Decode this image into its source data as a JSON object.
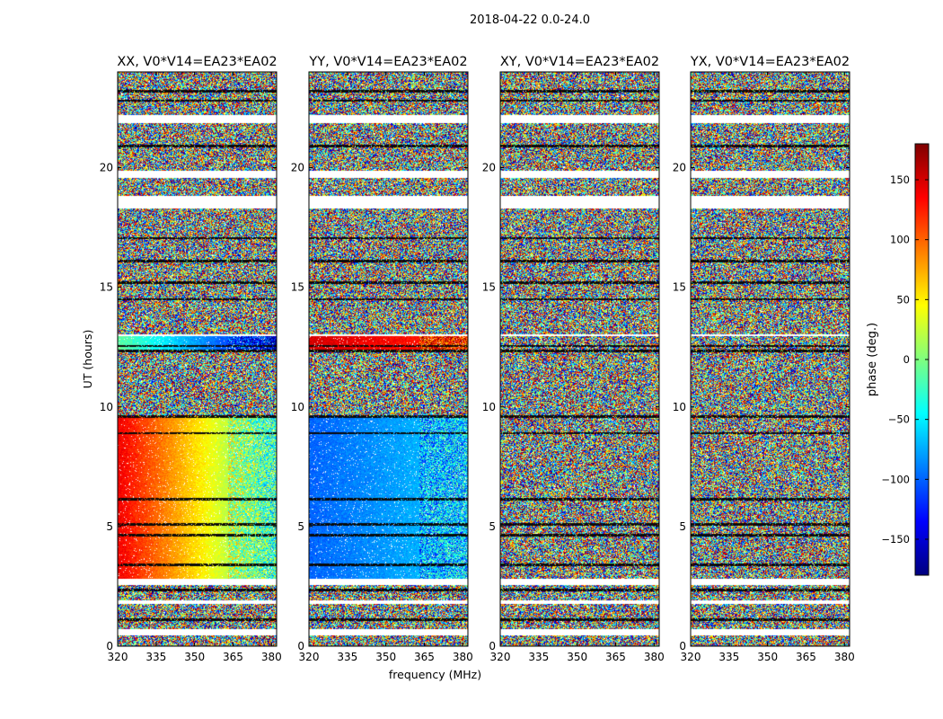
{
  "figure": {
    "suptitle": "2018-04-22 0.0-24.0"
  },
  "colorbar": {
    "label": "phase (deg.)",
    "ticks": [
      -150,
      -100,
      -50,
      0,
      50,
      100,
      150
    ],
    "tick_labels": [
      "−150",
      "−100",
      "−50",
      "0",
      "50",
      "100",
      "150"
    ],
    "range": [
      -180,
      180
    ],
    "colormap": "jet",
    "colors": [
      "#00007f",
      "#0000ff",
      "#007fff",
      "#00ffff",
      "#7fff7f",
      "#ffff00",
      "#ff7f00",
      "#ff0000",
      "#7f0000"
    ]
  },
  "chart_data": [
    {
      "type": "heatmap",
      "title": "XX, V0*V14=EA23*EA02",
      "xlabel": "",
      "ylabel": "UT (hours)",
      "xlim": [
        320,
        382
      ],
      "ylim": [
        0,
        24
      ],
      "xticks": [
        320,
        335,
        350,
        365,
        380
      ],
      "yticks": [
        0,
        5,
        10,
        15,
        20
      ],
      "coherent_phase_bands": [
        {
          "ut": [
            2.8,
            9.6
          ],
          "phase_at_320": 140,
          "phase_at_380": -30
        },
        {
          "ut": [
            12.4,
            13.0
          ],
          "phase_at_320": -10,
          "phase_at_380": -150
        }
      ]
    },
    {
      "type": "heatmap",
      "title": "YY, V0*V14=EA23*EA02",
      "xlabel": "frequency (MHz)",
      "ylabel": "",
      "xlim": [
        320,
        382
      ],
      "ylim": [
        0,
        24
      ],
      "xticks": [
        320,
        335,
        350,
        365,
        380
      ],
      "yticks": [
        0,
        5,
        10,
        15,
        20
      ],
      "coherent_phase_bands": [
        {
          "ut": [
            2.8,
            9.6
          ],
          "phase_at_320": -100,
          "phase_at_380": -60
        },
        {
          "ut": [
            12.4,
            13.0
          ],
          "phase_at_320": 150,
          "phase_at_380": 120
        }
      ]
    },
    {
      "type": "heatmap",
      "title": "XY, V0*V14=EA23*EA02",
      "xlabel": "",
      "ylabel": "",
      "xlim": [
        320,
        382
      ],
      "ylim": [
        0,
        24
      ],
      "xticks": [
        320,
        335,
        350,
        365,
        380
      ],
      "yticks": [
        0,
        5,
        10,
        15,
        20
      ],
      "coherent_phase_bands": []
    },
    {
      "type": "heatmap",
      "title": "YX, V0*V14=EA23*EA02",
      "xlabel": "",
      "ylabel": "",
      "xlim": [
        320,
        382
      ],
      "ylim": [
        0,
        24
      ],
      "xticks": [
        320,
        335,
        350,
        365,
        380
      ],
      "yticks": [
        0,
        5,
        10,
        15,
        20
      ],
      "coherent_phase_bands": []
    }
  ]
}
